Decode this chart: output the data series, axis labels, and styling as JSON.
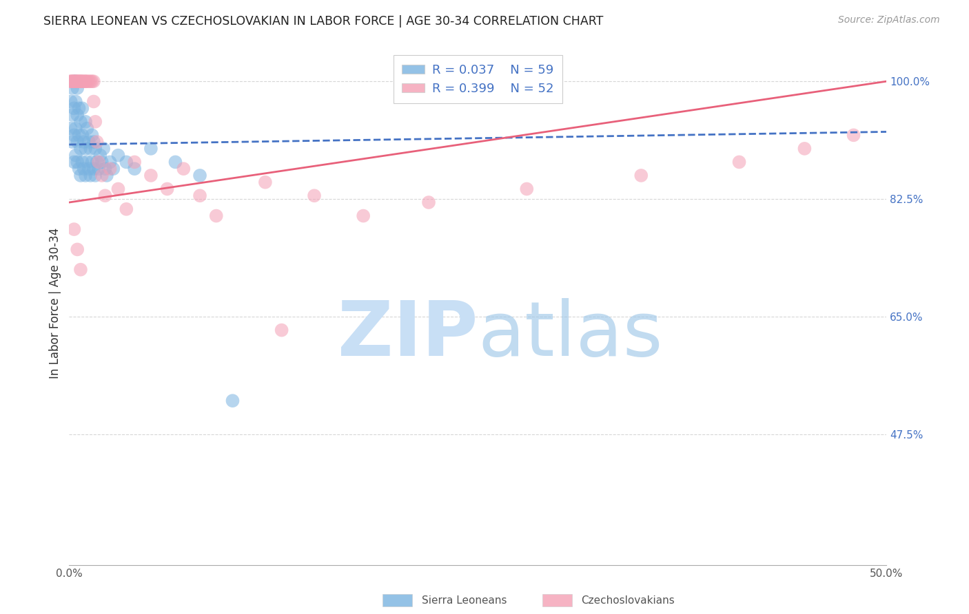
{
  "title": "SIERRA LEONEAN VS CZECHOSLOVAKIAN IN LABOR FORCE | AGE 30-34 CORRELATION CHART",
  "source": "Source: ZipAtlas.com",
  "ylabel": "In Labor Force | Age 30-34",
  "x_min": 0.0,
  "x_max": 0.5,
  "y_min": 0.28,
  "y_max": 1.06,
  "y_ticks": [
    0.475,
    0.65,
    0.825,
    1.0
  ],
  "y_tick_labels": [
    "47.5%",
    "65.0%",
    "82.5%",
    "100.0%"
  ],
  "grid_color": "#cccccc",
  "background_color": "#ffffff",
  "sierra_color": "#7ab3e0",
  "czech_color": "#f4a0b5",
  "sierra_line_color": "#4472c4",
  "czech_line_color": "#e8607a",
  "sierra_R": 0.037,
  "sierra_N": 59,
  "czech_R": 0.399,
  "czech_N": 52,
  "legend_label_sierra": "Sierra Leoneans",
  "legend_label_czech": "Czechoslovakians",
  "sierra_x": [
    0.001,
    0.001,
    0.002,
    0.002,
    0.002,
    0.003,
    0.003,
    0.003,
    0.003,
    0.004,
    0.004,
    0.004,
    0.004,
    0.005,
    0.005,
    0.005,
    0.005,
    0.006,
    0.006,
    0.006,
    0.007,
    0.007,
    0.007,
    0.008,
    0.008,
    0.008,
    0.009,
    0.009,
    0.01,
    0.01,
    0.01,
    0.011,
    0.011,
    0.012,
    0.012,
    0.013,
    0.013,
    0.014,
    0.014,
    0.015,
    0.015,
    0.016,
    0.016,
    0.017,
    0.018,
    0.019,
    0.02,
    0.021,
    0.022,
    0.023,
    0.025,
    0.027,
    0.03,
    0.035,
    0.04,
    0.05,
    0.065,
    0.08,
    0.1
  ],
  "sierra_y": [
    0.93,
    0.97,
    0.91,
    0.95,
    0.99,
    0.88,
    0.92,
    0.96,
    1.0,
    0.89,
    0.93,
    0.97,
    1.0,
    0.88,
    0.91,
    0.95,
    0.99,
    0.87,
    0.92,
    0.96,
    0.86,
    0.9,
    0.94,
    0.88,
    0.92,
    0.96,
    0.87,
    0.91,
    0.86,
    0.9,
    0.94,
    0.88,
    0.93,
    0.87,
    0.91,
    0.86,
    0.9,
    0.88,
    0.92,
    0.87,
    0.91,
    0.86,
    0.9,
    0.88,
    0.87,
    0.89,
    0.88,
    0.9,
    0.87,
    0.86,
    0.88,
    0.87,
    0.89,
    0.88,
    0.87,
    0.9,
    0.88,
    0.86,
    0.525
  ],
  "czech_x": [
    0.001,
    0.001,
    0.002,
    0.002,
    0.003,
    0.003,
    0.004,
    0.004,
    0.005,
    0.005,
    0.006,
    0.006,
    0.007,
    0.007,
    0.008,
    0.008,
    0.009,
    0.01,
    0.01,
    0.011,
    0.012,
    0.013,
    0.014,
    0.015,
    0.015,
    0.016,
    0.017,
    0.018,
    0.02,
    0.022,
    0.025,
    0.03,
    0.035,
    0.04,
    0.05,
    0.06,
    0.07,
    0.08,
    0.09,
    0.12,
    0.15,
    0.18,
    0.22,
    0.28,
    0.35,
    0.41,
    0.45,
    0.48,
    0.003,
    0.005,
    0.007,
    0.13
  ],
  "czech_y": [
    1.0,
    1.0,
    1.0,
    1.0,
    1.0,
    1.0,
    1.0,
    1.0,
    1.0,
    1.0,
    1.0,
    1.0,
    1.0,
    1.0,
    1.0,
    1.0,
    1.0,
    1.0,
    1.0,
    1.0,
    1.0,
    1.0,
    1.0,
    1.0,
    0.97,
    0.94,
    0.91,
    0.88,
    0.86,
    0.83,
    0.87,
    0.84,
    0.81,
    0.88,
    0.86,
    0.84,
    0.87,
    0.83,
    0.8,
    0.85,
    0.83,
    0.8,
    0.82,
    0.84,
    0.86,
    0.88,
    0.9,
    0.92,
    0.78,
    0.75,
    0.72,
    0.63
  ],
  "sierra_line_x": [
    0.0,
    0.5
  ],
  "sierra_line_y": [
    0.906,
    0.925
  ],
  "czech_line_x": [
    0.0,
    0.5
  ],
  "czech_line_y": [
    0.82,
    1.0
  ]
}
